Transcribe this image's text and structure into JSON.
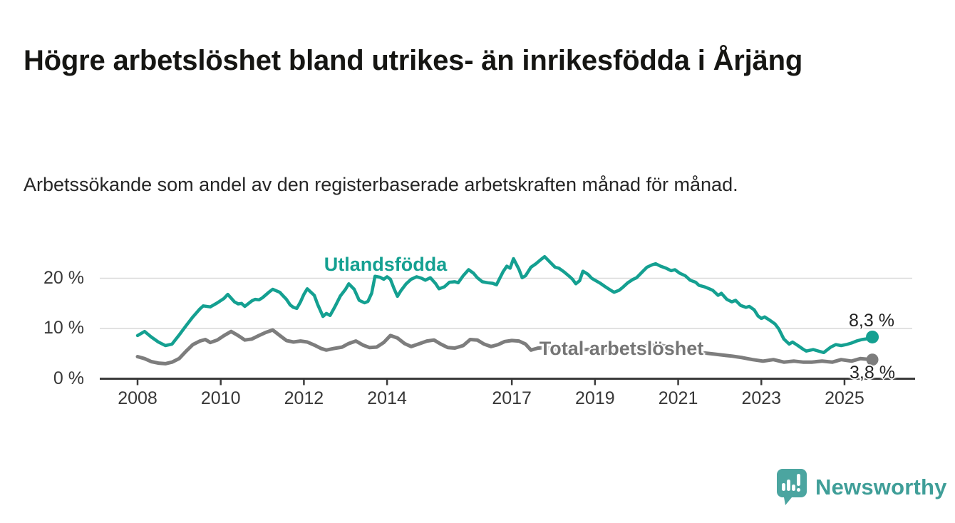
{
  "header": {
    "title": "Högre arbetslöshet bland utrikes- än inrikesfödda i Årjäng",
    "subtitle": "Arbetssökande som andel av den registerbaserade arbetskraften månad för månad."
  },
  "footer": {
    "brand": "Newsworthy",
    "logo_icon": "bar-chart-speech-bubble-icon",
    "logo_color": "#4ba5a0",
    "wordmark_color": "#3f9e98"
  },
  "chart_data": {
    "type": "line",
    "title": "Högre arbetslöshet bland utrikes- än inrikesfödda i Årjäng",
    "subtitle": "Arbetssökande som andel av den registerbaserade arbetskraften månad för månad.",
    "unit": "%",
    "grid": "horizontal",
    "legend_position": "inline-labels",
    "xlim": [
      2007.1,
      2026.6
    ],
    "ylim": [
      0,
      24.5
    ],
    "x_ticks": [
      "2008",
      "2010",
      "2012",
      "2014",
      "2017",
      "2019",
      "2021",
      "2023",
      "2025"
    ],
    "x_tick_values": [
      2008,
      2010,
      2012,
      2014,
      2017,
      2019,
      2021,
      2023,
      2025
    ],
    "y_ticks": [
      {
        "value": 0,
        "label": "0 %"
      },
      {
        "value": 10,
        "label": "10 %"
      },
      {
        "value": 20,
        "label": "20 %"
      }
    ],
    "colors": {
      "axis": "#3b3b3b",
      "gridline": "#d9d9d9",
      "utlandsfodda": "#14a091",
      "total": "#7d7d7d"
    },
    "series": [
      {
        "name": "Utlandsfödda",
        "color": "#14a091",
        "end_label": "8,3 %",
        "end_value": 8.3,
        "points": [
          [
            2008.0,
            8.6
          ],
          [
            2008.17,
            9.4
          ],
          [
            2008.33,
            8.3
          ],
          [
            2008.5,
            7.3
          ],
          [
            2008.67,
            6.6
          ],
          [
            2008.83,
            6.9
          ],
          [
            2009.0,
            8.7
          ],
          [
            2009.17,
            10.6
          ],
          [
            2009.33,
            12.3
          ],
          [
            2009.5,
            13.9
          ],
          [
            2009.58,
            14.5
          ],
          [
            2009.75,
            14.3
          ],
          [
            2009.92,
            15.1
          ],
          [
            2010.08,
            16.0
          ],
          [
            2010.17,
            16.8
          ],
          [
            2010.33,
            15.3
          ],
          [
            2010.42,
            14.9
          ],
          [
            2010.5,
            15.0
          ],
          [
            2010.58,
            14.4
          ],
          [
            2010.75,
            15.5
          ],
          [
            2010.83,
            15.8
          ],
          [
            2010.92,
            15.7
          ],
          [
            2011.0,
            16.1
          ],
          [
            2011.17,
            17.3
          ],
          [
            2011.25,
            17.8
          ],
          [
            2011.42,
            17.2
          ],
          [
            2011.5,
            16.5
          ],
          [
            2011.58,
            15.8
          ],
          [
            2011.67,
            14.7
          ],
          [
            2011.75,
            14.2
          ],
          [
            2011.83,
            14.0
          ],
          [
            2011.92,
            15.3
          ],
          [
            2012.0,
            16.8
          ],
          [
            2012.08,
            17.9
          ],
          [
            2012.25,
            16.6
          ],
          [
            2012.33,
            14.8
          ],
          [
            2012.46,
            12.4
          ],
          [
            2012.54,
            13.0
          ],
          [
            2012.63,
            12.6
          ],
          [
            2012.75,
            14.4
          ],
          [
            2012.88,
            16.5
          ],
          [
            2013.0,
            17.8
          ],
          [
            2013.08,
            18.9
          ],
          [
            2013.21,
            17.8
          ],
          [
            2013.33,
            15.6
          ],
          [
            2013.46,
            15.1
          ],
          [
            2013.54,
            15.4
          ],
          [
            2013.63,
            17.0
          ],
          [
            2013.71,
            20.4
          ],
          [
            2013.83,
            20.2
          ],
          [
            2013.92,
            19.8
          ],
          [
            2014.0,
            20.3
          ],
          [
            2014.08,
            19.8
          ],
          [
            2014.17,
            17.9
          ],
          [
            2014.25,
            16.4
          ],
          [
            2014.33,
            17.5
          ],
          [
            2014.46,
            18.9
          ],
          [
            2014.58,
            19.8
          ],
          [
            2014.71,
            20.3
          ],
          [
            2014.83,
            20.0
          ],
          [
            2014.92,
            19.6
          ],
          [
            2015.04,
            20.1
          ],
          [
            2015.17,
            18.9
          ],
          [
            2015.25,
            17.9
          ],
          [
            2015.38,
            18.3
          ],
          [
            2015.5,
            19.2
          ],
          [
            2015.63,
            19.3
          ],
          [
            2015.71,
            19.1
          ],
          [
            2015.83,
            20.5
          ],
          [
            2015.96,
            21.7
          ],
          [
            2016.08,
            21.0
          ],
          [
            2016.17,
            20.1
          ],
          [
            2016.29,
            19.3
          ],
          [
            2016.42,
            19.1
          ],
          [
            2016.54,
            19.0
          ],
          [
            2016.63,
            18.7
          ],
          [
            2016.79,
            21.3
          ],
          [
            2016.88,
            22.4
          ],
          [
            2016.96,
            22.0
          ],
          [
            2017.04,
            23.9
          ],
          [
            2017.17,
            21.8
          ],
          [
            2017.25,
            20.1
          ],
          [
            2017.33,
            20.5
          ],
          [
            2017.46,
            22.2
          ],
          [
            2017.58,
            22.9
          ],
          [
            2017.71,
            23.8
          ],
          [
            2017.79,
            24.3
          ],
          [
            2017.92,
            23.2
          ],
          [
            2018.04,
            22.2
          ],
          [
            2018.13,
            22.0
          ],
          [
            2018.25,
            21.3
          ],
          [
            2018.38,
            20.4
          ],
          [
            2018.46,
            19.8
          ],
          [
            2018.54,
            18.9
          ],
          [
            2018.63,
            19.5
          ],
          [
            2018.71,
            21.4
          ],
          [
            2018.83,
            20.8
          ],
          [
            2018.92,
            20.0
          ],
          [
            2019.0,
            19.6
          ],
          [
            2019.13,
            19.0
          ],
          [
            2019.25,
            18.3
          ],
          [
            2019.38,
            17.6
          ],
          [
            2019.46,
            17.2
          ],
          [
            2019.58,
            17.6
          ],
          [
            2019.67,
            18.2
          ],
          [
            2019.79,
            19.1
          ],
          [
            2019.92,
            19.8
          ],
          [
            2020.0,
            20.1
          ],
          [
            2020.13,
            21.2
          ],
          [
            2020.25,
            22.2
          ],
          [
            2020.38,
            22.7
          ],
          [
            2020.46,
            22.9
          ],
          [
            2020.58,
            22.4
          ],
          [
            2020.71,
            22.0
          ],
          [
            2020.83,
            21.5
          ],
          [
            2020.92,
            21.7
          ],
          [
            2021.04,
            21.0
          ],
          [
            2021.17,
            20.5
          ],
          [
            2021.29,
            19.6
          ],
          [
            2021.42,
            19.2
          ],
          [
            2021.5,
            18.6
          ],
          [
            2021.63,
            18.3
          ],
          [
            2021.75,
            17.9
          ],
          [
            2021.83,
            17.6
          ],
          [
            2021.96,
            16.6
          ],
          [
            2022.04,
            17.0
          ],
          [
            2022.17,
            15.8
          ],
          [
            2022.29,
            15.3
          ],
          [
            2022.38,
            15.6
          ],
          [
            2022.5,
            14.6
          ],
          [
            2022.63,
            14.2
          ],
          [
            2022.71,
            14.4
          ],
          [
            2022.83,
            13.7
          ],
          [
            2022.92,
            12.5
          ],
          [
            2023.0,
            12.0
          ],
          [
            2023.08,
            12.3
          ],
          [
            2023.21,
            11.6
          ],
          [
            2023.33,
            10.9
          ],
          [
            2023.42,
            9.9
          ],
          [
            2023.54,
            7.9
          ],
          [
            2023.67,
            6.9
          ],
          [
            2023.75,
            7.3
          ],
          [
            2023.88,
            6.6
          ],
          [
            2024.0,
            5.9
          ],
          [
            2024.08,
            5.5
          ],
          [
            2024.25,
            5.8
          ],
          [
            2024.33,
            5.6
          ],
          [
            2024.5,
            5.2
          ],
          [
            2024.67,
            6.3
          ],
          [
            2024.79,
            6.8
          ],
          [
            2024.92,
            6.6
          ],
          [
            2025.04,
            6.8
          ],
          [
            2025.17,
            7.1
          ],
          [
            2025.29,
            7.5
          ],
          [
            2025.42,
            7.8
          ],
          [
            2025.58,
            8.0
          ],
          [
            2025.67,
            8.3
          ]
        ]
      },
      {
        "name": "Total arbetslöshet",
        "color": "#7d7d7d",
        "end_label": "3,8 %",
        "end_value": 3.8,
        "points": [
          [
            2008.0,
            4.4
          ],
          [
            2008.17,
            4.0
          ],
          [
            2008.33,
            3.4
          ],
          [
            2008.5,
            3.1
          ],
          [
            2008.67,
            3.0
          ],
          [
            2008.83,
            3.3
          ],
          [
            2009.0,
            4.0
          ],
          [
            2009.17,
            5.5
          ],
          [
            2009.33,
            6.8
          ],
          [
            2009.5,
            7.5
          ],
          [
            2009.63,
            7.8
          ],
          [
            2009.75,
            7.2
          ],
          [
            2009.92,
            7.7
          ],
          [
            2010.08,
            8.6
          ],
          [
            2010.25,
            9.4
          ],
          [
            2010.42,
            8.6
          ],
          [
            2010.58,
            7.7
          ],
          [
            2010.75,
            7.9
          ],
          [
            2010.92,
            8.6
          ],
          [
            2011.08,
            9.2
          ],
          [
            2011.25,
            9.7
          ],
          [
            2011.42,
            8.6
          ],
          [
            2011.58,
            7.6
          ],
          [
            2011.75,
            7.3
          ],
          [
            2011.92,
            7.5
          ],
          [
            2012.08,
            7.3
          ],
          [
            2012.25,
            6.7
          ],
          [
            2012.42,
            6.0
          ],
          [
            2012.54,
            5.7
          ],
          [
            2012.71,
            6.0
          ],
          [
            2012.92,
            6.3
          ],
          [
            2013.08,
            7.0
          ],
          [
            2013.25,
            7.5
          ],
          [
            2013.42,
            6.7
          ],
          [
            2013.58,
            6.2
          ],
          [
            2013.75,
            6.3
          ],
          [
            2013.92,
            7.2
          ],
          [
            2014.08,
            8.6
          ],
          [
            2014.25,
            8.1
          ],
          [
            2014.42,
            7.0
          ],
          [
            2014.58,
            6.4
          ],
          [
            2014.79,
            7.0
          ],
          [
            2014.96,
            7.5
          ],
          [
            2015.13,
            7.7
          ],
          [
            2015.29,
            6.9
          ],
          [
            2015.46,
            6.2
          ],
          [
            2015.63,
            6.1
          ],
          [
            2015.83,
            6.6
          ],
          [
            2016.0,
            7.8
          ],
          [
            2016.17,
            7.7
          ],
          [
            2016.33,
            6.9
          ],
          [
            2016.5,
            6.4
          ],
          [
            2016.67,
            6.8
          ],
          [
            2016.83,
            7.4
          ],
          [
            2017.0,
            7.6
          ],
          [
            2017.17,
            7.5
          ],
          [
            2017.33,
            6.9
          ],
          [
            2017.46,
            5.7
          ],
          [
            2017.63,
            6.1
          ],
          [
            2017.83,
            6.2
          ],
          [
            2018.0,
            5.9
          ],
          [
            2018.25,
            5.7
          ],
          [
            2018.5,
            5.6
          ],
          [
            2018.75,
            5.8
          ],
          [
            2019.0,
            5.9
          ],
          [
            2019.25,
            5.6
          ],
          [
            2019.5,
            5.4
          ],
          [
            2019.75,
            5.7
          ],
          [
            2020.0,
            6.0
          ],
          [
            2020.25,
            6.6
          ],
          [
            2020.5,
            6.8
          ],
          [
            2020.75,
            6.4
          ],
          [
            2021.0,
            5.9
          ],
          [
            2021.21,
            5.4
          ],
          [
            2021.55,
            5.2
          ],
          [
            2021.88,
            4.9
          ],
          [
            2022.08,
            4.7
          ],
          [
            2022.3,
            4.5
          ],
          [
            2022.54,
            4.2
          ],
          [
            2022.79,
            3.8
          ],
          [
            2023.04,
            3.5
          ],
          [
            2023.29,
            3.8
          ],
          [
            2023.54,
            3.3
          ],
          [
            2023.79,
            3.5
          ],
          [
            2024.0,
            3.3
          ],
          [
            2024.21,
            3.3
          ],
          [
            2024.46,
            3.5
          ],
          [
            2024.71,
            3.3
          ],
          [
            2024.92,
            3.8
          ],
          [
            2025.17,
            3.5
          ],
          [
            2025.38,
            4.0
          ],
          [
            2025.67,
            3.8
          ]
        ]
      }
    ]
  }
}
